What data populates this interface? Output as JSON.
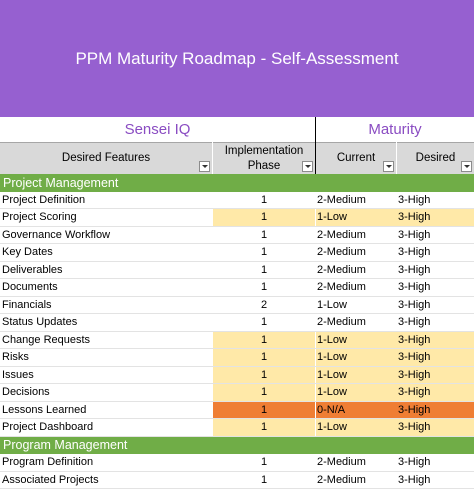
{
  "title": "PPM Maturity Roadmap - Self-Assessment",
  "group_headers": {
    "left": "Sensei IQ",
    "right": "Maturity"
  },
  "columns": {
    "feature": "Desired Features",
    "phase_line1": "Implementation",
    "phase_line2": "Phase",
    "current": "Current",
    "desired": "Desired"
  },
  "colors": {
    "banner": "#9660d0",
    "group_text": "#8a4cc2",
    "section": "#70ad47",
    "highlight_yellow": "#ffe9a8",
    "highlight_orange": "#ef7e34"
  },
  "rows": [
    {
      "type": "section",
      "label": "Project Management"
    },
    {
      "feature": "Project Definition",
      "phase": "1",
      "current": "2-Medium",
      "desired": "3-High",
      "hl": ""
    },
    {
      "feature": "Project Scoring",
      "phase": "1",
      "current": "1-Low",
      "desired": "3-High",
      "hl": "yellow"
    },
    {
      "feature": "Governance Workflow",
      "phase": "1",
      "current": "2-Medium",
      "desired": "3-High",
      "hl": ""
    },
    {
      "feature": "Key Dates",
      "phase": "1",
      "current": "2-Medium",
      "desired": "3-High",
      "hl": ""
    },
    {
      "feature": "Deliverables",
      "phase": "1",
      "current": "2-Medium",
      "desired": "3-High",
      "hl": ""
    },
    {
      "feature": "Documents",
      "phase": "1",
      "current": "2-Medium",
      "desired": "3-High",
      "hl": ""
    },
    {
      "feature": "Financials",
      "phase": "2",
      "current": "1-Low",
      "desired": "3-High",
      "hl": ""
    },
    {
      "feature": "Status Updates",
      "phase": "1",
      "current": "2-Medium",
      "desired": "3-High",
      "hl": ""
    },
    {
      "feature": "Change Requests",
      "phase": "1",
      "current": "1-Low",
      "desired": "3-High",
      "hl": "yellow"
    },
    {
      "feature": "Risks",
      "phase": "1",
      "current": "1-Low",
      "desired": "3-High",
      "hl": "yellow"
    },
    {
      "feature": "Issues",
      "phase": "1",
      "current": "1-Low",
      "desired": "3-High",
      "hl": "yellow"
    },
    {
      "feature": "Decisions",
      "phase": "1",
      "current": "1-Low",
      "desired": "3-High",
      "hl": "yellow"
    },
    {
      "feature": "Lessons Learned",
      "phase": "1",
      "current": "0-N/A",
      "desired": "3-High",
      "hl": "orange"
    },
    {
      "feature": "Project Dashboard",
      "phase": "1",
      "current": "1-Low",
      "desired": "3-High",
      "hl": "yellow"
    },
    {
      "type": "section",
      "label": "Program Management"
    },
    {
      "feature": "Program Definition",
      "phase": "1",
      "current": "2-Medium",
      "desired": "3-High",
      "hl": ""
    },
    {
      "feature": "Associated Projects",
      "phase": "1",
      "current": "2-Medium",
      "desired": "3-High",
      "hl": ""
    }
  ]
}
